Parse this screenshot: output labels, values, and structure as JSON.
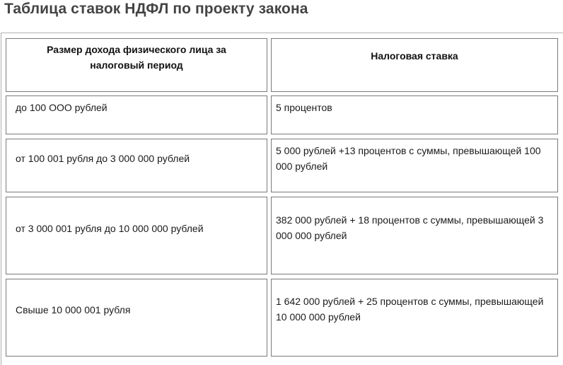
{
  "page": {
    "title": "Таблица ставок НДФЛ по проекту закона"
  },
  "table": {
    "headers": [
      "Размер дохода физического лица за налоговый период",
      "Налоговая ставка"
    ],
    "rows": [
      {
        "income": "до 100 ООО рублей",
        "rate": "5 процентов"
      },
      {
        "income": "от 100 001 рубля до 3 000 000 рублей",
        "rate": "5 000 рублей +13 процентов с суммы, превышающей 100 000 рублей"
      },
      {
        "income": "от 3 000 001 рубля до 10 000 000 рублей",
        "rate": "382 000 рублей + 18 процентов с суммы, превышающей 3 000 000 рублей"
      },
      {
        "income": "Свыше 10 000 001 рубля",
        "rate": "1 642 000 рублей + 25 процентов с суммы, превышающей 10 000 000 рублей"
      }
    ]
  },
  "colors": {
    "title": "#444444",
    "border": "#7a7a7a",
    "text": "#1a1a1a"
  }
}
